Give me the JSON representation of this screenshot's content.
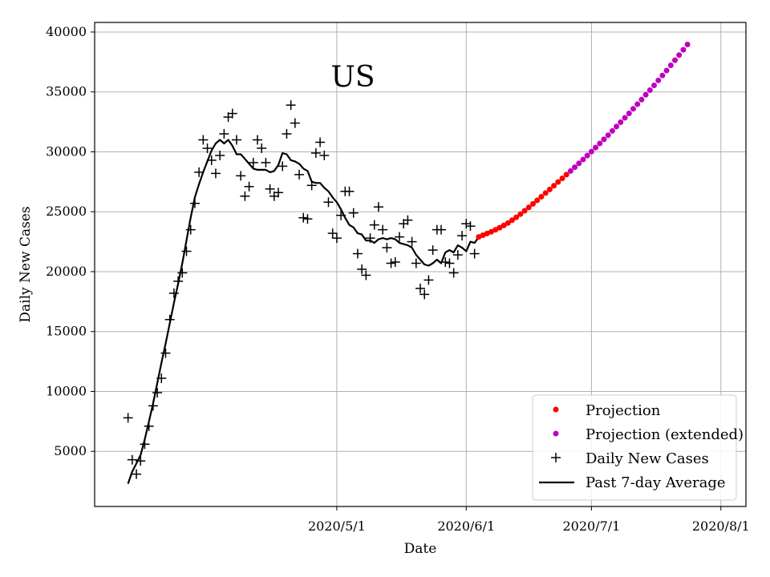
{
  "chart_data": {
    "type": "line",
    "title": "US",
    "xlabel": "Date",
    "ylabel": "Daily New Cases",
    "x_ticks": [
      "2020/5/1",
      "2020/6/1",
      "2020/7/1",
      "2020/8/1"
    ],
    "y_ticks": [
      5000,
      10000,
      15000,
      20000,
      25000,
      30000,
      35000,
      40000
    ],
    "xlim": [
      "2020-03-04",
      "2020-08-07"
    ],
    "ylim": [
      400,
      40800
    ],
    "grid": true,
    "legend_position": "bottom-right",
    "legend": [
      "Projection",
      "Projection (extended)",
      "Daily New Cases",
      "Past 7-day Average"
    ],
    "series": [
      {
        "name": "Daily New Cases",
        "marker": "plus",
        "color": "#000000",
        "points": [
          [
            "2020-03-12",
            7800
          ],
          [
            "2020-03-13",
            4300
          ],
          [
            "2020-03-14",
            3100
          ],
          [
            "2020-03-15",
            4200
          ],
          [
            "2020-03-16",
            5600
          ],
          [
            "2020-03-17",
            7100
          ],
          [
            "2020-03-18",
            8800
          ],
          [
            "2020-03-19",
            9900
          ],
          [
            "2020-03-20",
            11100
          ],
          [
            "2020-03-21",
            13200
          ],
          [
            "2020-03-22",
            16000
          ],
          [
            "2020-03-23",
            18200
          ],
          [
            "2020-03-24",
            19200
          ],
          [
            "2020-03-25",
            19900
          ],
          [
            "2020-03-26",
            21700
          ],
          [
            "2020-03-27",
            23500
          ],
          [
            "2020-03-28",
            25700
          ],
          [
            "2020-03-29",
            28300
          ],
          [
            "2020-03-30",
            31000
          ],
          [
            "2020-03-31",
            30300
          ],
          [
            "2020-04-01",
            29300
          ],
          [
            "2020-04-02",
            28200
          ],
          [
            "2020-04-03",
            29700
          ],
          [
            "2020-04-04",
            31500
          ],
          [
            "2020-04-05",
            32900
          ],
          [
            "2020-04-06",
            33200
          ],
          [
            "2020-04-07",
            31000
          ],
          [
            "2020-04-08",
            28000
          ],
          [
            "2020-04-09",
            26300
          ],
          [
            "2020-04-10",
            27100
          ],
          [
            "2020-04-11",
            29100
          ],
          [
            "2020-04-12",
            31000
          ],
          [
            "2020-04-13",
            30300
          ],
          [
            "2020-04-14",
            29100
          ],
          [
            "2020-04-15",
            26900
          ],
          [
            "2020-04-16",
            26300
          ],
          [
            "2020-04-17",
            26600
          ],
          [
            "2020-04-18",
            28800
          ],
          [
            "2020-04-19",
            31500
          ],
          [
            "2020-04-20",
            33900
          ],
          [
            "2020-04-21",
            32400
          ],
          [
            "2020-04-22",
            28100
          ],
          [
            "2020-04-23",
            24500
          ],
          [
            "2020-04-24",
            24400
          ],
          [
            "2020-04-25",
            27200
          ],
          [
            "2020-04-26",
            29900
          ],
          [
            "2020-04-27",
            30800
          ],
          [
            "2020-04-28",
            29700
          ],
          [
            "2020-04-29",
            25800
          ],
          [
            "2020-04-30",
            23200
          ],
          [
            "2020-05-01",
            22800
          ],
          [
            "2020-05-02",
            24700
          ],
          [
            "2020-05-03",
            26700
          ],
          [
            "2020-05-04",
            26700
          ],
          [
            "2020-05-05",
            24900
          ],
          [
            "2020-05-06",
            21500
          ],
          [
            "2020-05-07",
            20200
          ],
          [
            "2020-05-08",
            19700
          ],
          [
            "2020-05-09",
            22800
          ],
          [
            "2020-05-10",
            23900
          ],
          [
            "2020-05-11",
            25400
          ],
          [
            "2020-05-12",
            23500
          ],
          [
            "2020-05-13",
            22000
          ],
          [
            "2020-05-14",
            20700
          ],
          [
            "2020-05-15",
            20800
          ],
          [
            "2020-05-16",
            22900
          ],
          [
            "2020-05-17",
            24000
          ],
          [
            "2020-05-18",
            24300
          ],
          [
            "2020-05-19",
            22500
          ],
          [
            "2020-05-20",
            20700
          ],
          [
            "2020-05-21",
            18600
          ],
          [
            "2020-05-22",
            18100
          ],
          [
            "2020-05-23",
            19300
          ],
          [
            "2020-05-24",
            21800
          ],
          [
            "2020-05-25",
            23500
          ],
          [
            "2020-05-26",
            23500
          ],
          [
            "2020-05-27",
            20800
          ],
          [
            "2020-05-28",
            20700
          ],
          [
            "2020-05-29",
            19900
          ],
          [
            "2020-05-30",
            21400
          ],
          [
            "2020-05-31",
            23000
          ],
          [
            "2020-06-01",
            24000
          ],
          [
            "2020-06-02",
            23800
          ],
          [
            "2020-06-03",
            21500
          ]
        ]
      },
      {
        "name": "Past 7-day Average",
        "marker": "line",
        "color": "#000000",
        "points": [
          [
            "2020-03-12",
            2300
          ],
          [
            "2020-03-13",
            3300
          ],
          [
            "2020-03-14",
            4000
          ],
          [
            "2020-03-15",
            4700
          ],
          [
            "2020-03-16",
            6000
          ],
          [
            "2020-03-17",
            7500
          ],
          [
            "2020-03-18",
            9000
          ],
          [
            "2020-03-19",
            10700
          ],
          [
            "2020-03-20",
            12400
          ],
          [
            "2020-03-21",
            14000
          ],
          [
            "2020-03-22",
            15700
          ],
          [
            "2020-03-23",
            17400
          ],
          [
            "2020-03-24",
            19000
          ],
          [
            "2020-03-25",
            20700
          ],
          [
            "2020-03-26",
            22600
          ],
          [
            "2020-03-27",
            24500
          ],
          [
            "2020-03-28",
            26200
          ],
          [
            "2020-03-29",
            27300
          ],
          [
            "2020-03-30",
            28300
          ],
          [
            "2020-03-31",
            29200
          ],
          [
            "2020-04-01",
            30100
          ],
          [
            "2020-04-02",
            30700
          ],
          [
            "2020-04-03",
            31000
          ],
          [
            "2020-04-04",
            30700
          ],
          [
            "2020-04-05",
            31000
          ],
          [
            "2020-04-06",
            30500
          ],
          [
            "2020-04-07",
            29800
          ],
          [
            "2020-04-08",
            29800
          ],
          [
            "2020-04-09",
            29400
          ],
          [
            "2020-04-10",
            29000
          ],
          [
            "2020-04-11",
            28600
          ],
          [
            "2020-04-12",
            28500
          ],
          [
            "2020-04-13",
            28500
          ],
          [
            "2020-04-14",
            28500
          ],
          [
            "2020-04-15",
            28300
          ],
          [
            "2020-04-16",
            28400
          ],
          [
            "2020-04-17",
            28900
          ],
          [
            "2020-04-18",
            29900
          ],
          [
            "2020-04-19",
            29800
          ],
          [
            "2020-04-20",
            29300
          ],
          [
            "2020-04-21",
            29200
          ],
          [
            "2020-04-22",
            29000
          ],
          [
            "2020-04-23",
            28600
          ],
          [
            "2020-04-24",
            28400
          ],
          [
            "2020-04-25",
            27500
          ],
          [
            "2020-04-26",
            27400
          ],
          [
            "2020-04-27",
            27400
          ],
          [
            "2020-04-28",
            27000
          ],
          [
            "2020-04-29",
            26700
          ],
          [
            "2020-04-30",
            26200
          ],
          [
            "2020-05-01",
            25800
          ],
          [
            "2020-05-02",
            25200
          ],
          [
            "2020-05-03",
            24500
          ],
          [
            "2020-05-04",
            23900
          ],
          [
            "2020-05-05",
            23700
          ],
          [
            "2020-05-06",
            23200
          ],
          [
            "2020-05-07",
            23100
          ],
          [
            "2020-05-08",
            22600
          ],
          [
            "2020-05-09",
            22600
          ],
          [
            "2020-05-10",
            22400
          ],
          [
            "2020-05-11",
            22700
          ],
          [
            "2020-05-12",
            22800
          ],
          [
            "2020-05-13",
            22700
          ],
          [
            "2020-05-14",
            22800
          ],
          [
            "2020-05-15",
            22700
          ],
          [
            "2020-05-16",
            22400
          ],
          [
            "2020-05-17",
            22300
          ],
          [
            "2020-05-18",
            22200
          ],
          [
            "2020-05-19",
            22000
          ],
          [
            "2020-05-20",
            21400
          ],
          [
            "2020-05-21",
            21000
          ],
          [
            "2020-05-22",
            20600
          ],
          [
            "2020-05-23",
            20500
          ],
          [
            "2020-05-24",
            20700
          ],
          [
            "2020-05-25",
            21000
          ],
          [
            "2020-05-26",
            20700
          ],
          [
            "2020-05-27",
            21600
          ],
          [
            "2020-05-28",
            21800
          ],
          [
            "2020-05-29",
            21600
          ],
          [
            "2020-05-30",
            22200
          ],
          [
            "2020-05-31",
            22000
          ],
          [
            "2020-06-01",
            21700
          ],
          [
            "2020-06-02",
            22500
          ],
          [
            "2020-06-03",
            22400
          ],
          [
            "2020-06-04",
            22900
          ]
        ]
      },
      {
        "name": "Projection",
        "marker": "dot",
        "color": "#ff0000",
        "start": "2020-06-04",
        "values": [
          22900,
          23040,
          23180,
          23330,
          23490,
          23670,
          23860,
          24060,
          24290,
          24540,
          24800,
          25080,
          25360,
          25660,
          25950,
          26250,
          26560,
          26860,
          27170,
          27480,
          27790,
          28100
        ]
      },
      {
        "name": "Projection (extended)",
        "marker": "dot",
        "color": "#bf00bf",
        "start": "2020-06-26",
        "values": [
          28400,
          28720,
          29040,
          29360,
          29690,
          30020,
          30360,
          30700,
          31040,
          31390,
          31750,
          32110,
          32470,
          32840,
          33210,
          33590,
          33980,
          34360,
          34760,
          35150,
          35550,
          35960,
          36370,
          36790,
          37220,
          37650,
          38080,
          38520,
          38960
        ]
      }
    ]
  }
}
